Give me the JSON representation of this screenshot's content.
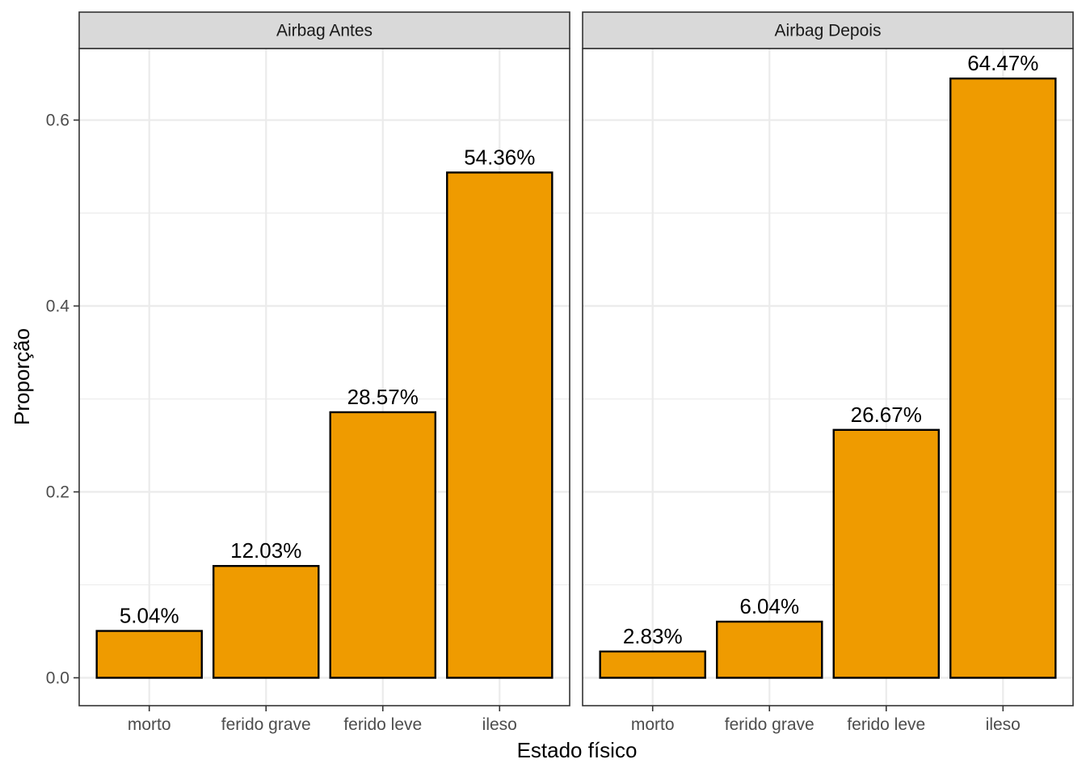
{
  "chart_data": {
    "type": "bar",
    "xlabel": "Estado físico",
    "ylabel": "Proporção",
    "ylim": [
      -0.03,
      0.677
    ],
    "yticks": [
      0.0,
      0.2,
      0.4,
      0.6
    ],
    "ytick_labels": [
      "0.0",
      "0.2",
      "0.4",
      "0.6"
    ],
    "grid": true,
    "bar_color": "#ef9b00",
    "categories": [
      "morto",
      "ferido grave",
      "ferido leve",
      "ileso"
    ],
    "facets": [
      {
        "title": "Airbag Antes",
        "values": [
          0.0504,
          0.1203,
          0.2857,
          0.5436
        ],
        "labels": [
          "5.04%",
          "12.03%",
          "28.57%",
          "54.36%"
        ]
      },
      {
        "title": "Airbag Depois",
        "values": [
          0.0283,
          0.0604,
          0.2667,
          0.6447
        ],
        "labels": [
          "2.83%",
          "6.04%",
          "26.67%",
          "64.47%"
        ]
      }
    ]
  }
}
